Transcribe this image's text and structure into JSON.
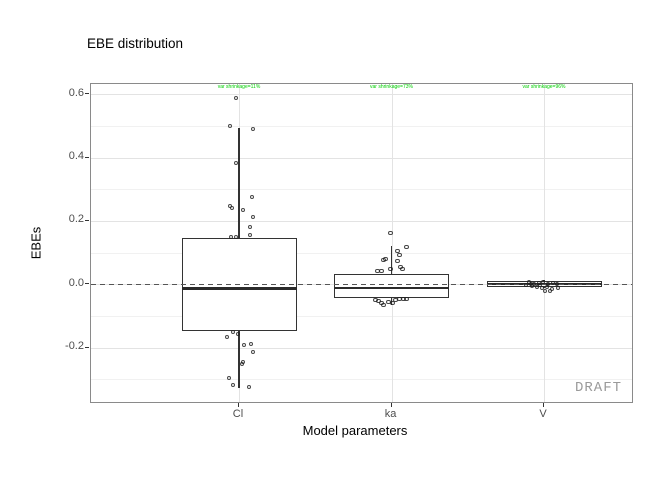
{
  "chart_data": {
    "type": "boxplot",
    "title": "EBE distribution",
    "xlabel": "Model parameters",
    "ylabel": "EBEs",
    "categories": [
      "Cl",
      "ka",
      "V"
    ],
    "ytick_labels": [
      "0.6",
      "0.4",
      "0.2",
      "0.0",
      "-0.2"
    ],
    "yticks": [
      0.6,
      0.4,
      0.2,
      0.0,
      -0.2
    ],
    "yticks_minor": [
      0.5,
      0.3,
      0.1,
      -0.1,
      -0.3
    ],
    "ylim": [
      -0.378,
      0.632
    ],
    "grid": true,
    "zero_line": {
      "y": 0.0,
      "style": "dashed"
    },
    "watermark": "DRAFT",
    "annotation_color": "#00ce00",
    "shrinkage_annotations": [
      {
        "category": "Cl",
        "text": "var shrinkage=11%"
      },
      {
        "category": "ka",
        "text": "var shrinkage=73%"
      },
      {
        "category": "V",
        "text": "var shrinkage=96%"
      }
    ],
    "boxes": [
      {
        "category": "Cl",
        "whisker_low": -0.327,
        "q1": -0.147,
        "median": -0.013,
        "q3": 0.146,
        "whisker_high": 0.494
      },
      {
        "category": "ka",
        "whisker_low": -0.065,
        "q1": -0.043,
        "median": -0.012,
        "q3": 0.033,
        "whisker_high": 0.121
      },
      {
        "category": "V",
        "whisker_low": -0.013,
        "q1": -0.007,
        "median": 0.001,
        "q3": 0.01,
        "whisker_high": 0.012
      }
    ],
    "points": {
      "Cl": [
        [
          -3,
          0.588
        ],
        [
          -9,
          0.5
        ],
        [
          14,
          0.49
        ],
        [
          -3,
          0.383
        ],
        [
          13,
          0.276
        ],
        [
          -9,
          0.247
        ],
        [
          -7,
          0.241
        ],
        [
          4,
          0.235
        ],
        [
          14,
          0.212
        ],
        [
          11,
          0.181
        ],
        [
          -8,
          0.149
        ],
        [
          -3,
          0.149
        ],
        [
          11,
          0.156
        ],
        [
          -6,
          -0.151
        ],
        [
          -12,
          -0.166
        ],
        [
          -1,
          -0.157
        ],
        [
          5,
          -0.192
        ],
        [
          12,
          -0.188
        ],
        [
          14,
          -0.214
        ],
        [
          4,
          -0.245
        ],
        [
          3,
          -0.252
        ],
        [
          -10,
          -0.296
        ],
        [
          -6,
          -0.318
        ],
        [
          10,
          -0.324
        ]
      ],
      "ka": [
        [
          -1,
          0.162
        ],
        [
          15,
          0.118
        ],
        [
          6,
          0.105
        ],
        [
          8,
          0.092
        ],
        [
          -6,
          0.08
        ],
        [
          -8,
          0.077
        ],
        [
          6,
          0.074
        ],
        [
          9,
          0.055
        ],
        [
          -1,
          0.048
        ],
        [
          11,
          0.048
        ],
        [
          -14,
          0.042
        ],
        [
          -10,
          0.042
        ],
        [
          -16,
          -0.05
        ],
        [
          -10,
          -0.059
        ],
        [
          -8,
          -0.065
        ],
        [
          -3,
          -0.056
        ],
        [
          1,
          -0.059
        ],
        [
          4,
          -0.05
        ],
        [
          8,
          -0.046
        ],
        [
          12,
          -0.046
        ],
        [
          15,
          -0.046
        ],
        [
          -13,
          -0.053
        ]
      ],
      "V": [
        [
          -15,
          0.007
        ],
        [
          -10,
          0.001
        ],
        [
          -5,
          0.004
        ],
        [
          -1,
          0.007
        ],
        [
          4,
          0.001
        ],
        [
          9,
          0.004
        ],
        [
          -7,
          -0.009
        ],
        [
          -2,
          -0.012
        ],
        [
          3,
          -0.009
        ],
        [
          8,
          -0.015
        ],
        [
          -12,
          -0.005
        ],
        [
          13,
          0.001
        ],
        [
          1,
          -0.021
        ],
        [
          6,
          -0.021
        ],
        [
          -4,
          -0.002
        ],
        [
          -18,
          -0.002
        ],
        [
          14,
          -0.012
        ],
        [
          -13,
          0.001
        ]
      ]
    }
  }
}
